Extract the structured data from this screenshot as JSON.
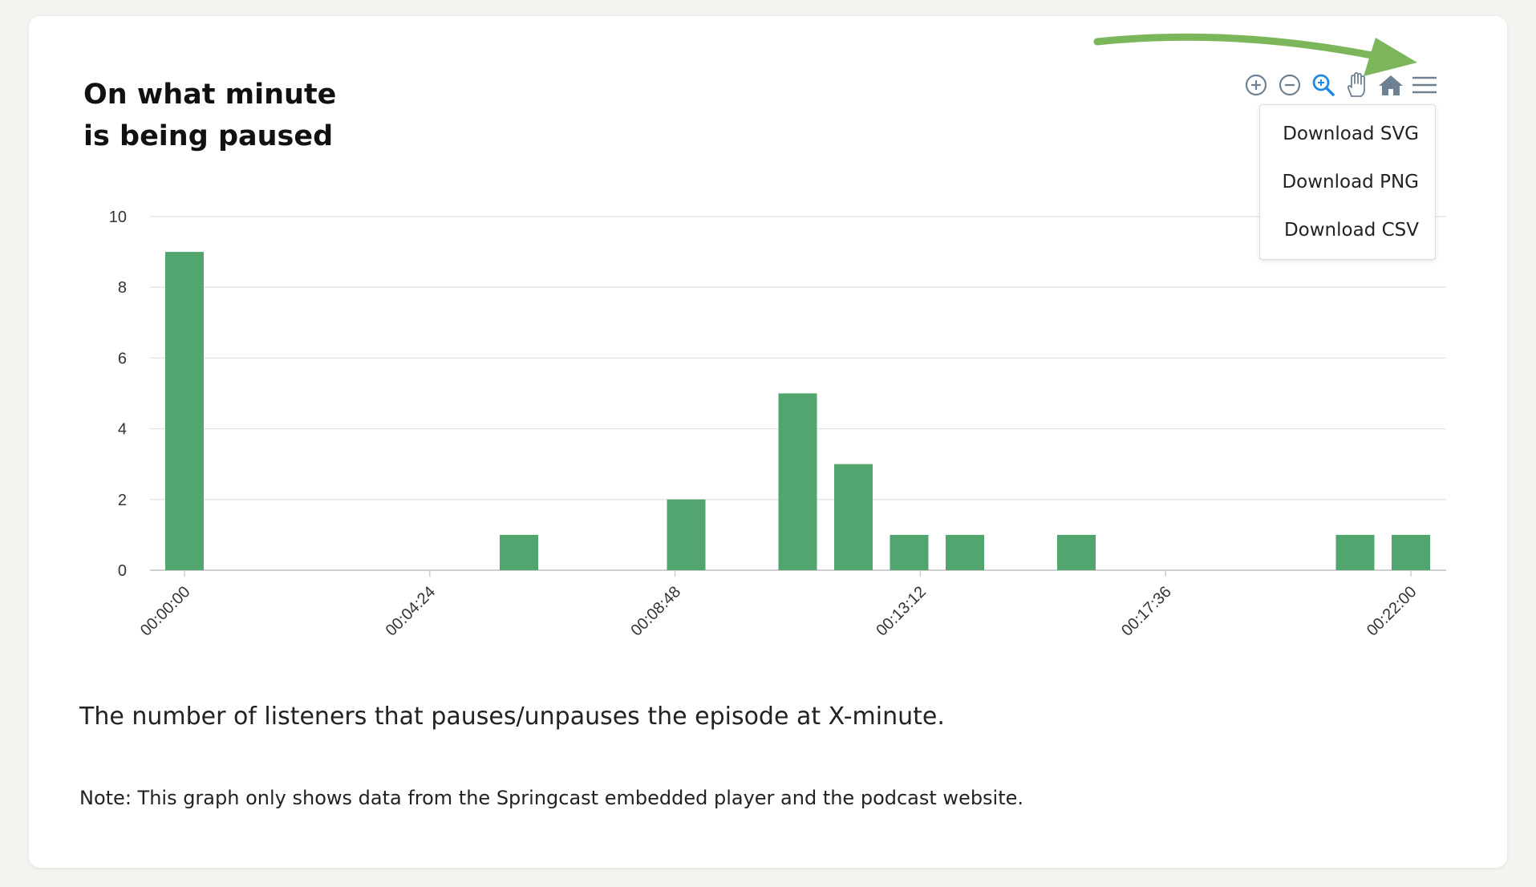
{
  "card": {
    "title_line1": "On what minute",
    "title_line2": "is being paused",
    "caption": "The number of listeners that pauses/unpauses the episode at X-minute.",
    "note": "Note: This graph only shows data from the Springcast embedded player and the podcast website."
  },
  "toolbar": {
    "icons": [
      "zoom-in-icon",
      "zoom-out-icon",
      "selection-zoom-icon",
      "pan-hand-icon",
      "home-reset-icon",
      "menu-hamburger-icon"
    ],
    "active_color": "#1e88e5",
    "icon_color": "#6e8192"
  },
  "menu": {
    "items": [
      "Download SVG",
      "Download PNG",
      "Download CSV"
    ]
  },
  "annotation": {
    "arrow_color": "#7cb65a"
  },
  "chart_data": {
    "type": "bar",
    "title": "",
    "xlabel": "",
    "ylabel": "",
    "ylim": [
      0,
      10
    ],
    "yticks": [
      0,
      2,
      4,
      6,
      8,
      10
    ],
    "xtick_labels": [
      "00:00:00",
      "00:04:24",
      "00:08:48",
      "00:13:12",
      "00:17:36",
      "00:22:00"
    ],
    "bar_color": "#52a56f",
    "grid": true,
    "series": [
      {
        "x": [
          "00:00:00",
          "00:06:00",
          "00:09:00",
          "00:11:00",
          "00:12:00",
          "00:13:00",
          "00:14:00",
          "00:16:00",
          "00:21:00",
          "00:22:00"
        ],
        "values": [
          9,
          1,
          2,
          5,
          3,
          1,
          1,
          1,
          1,
          1
        ]
      }
    ]
  }
}
